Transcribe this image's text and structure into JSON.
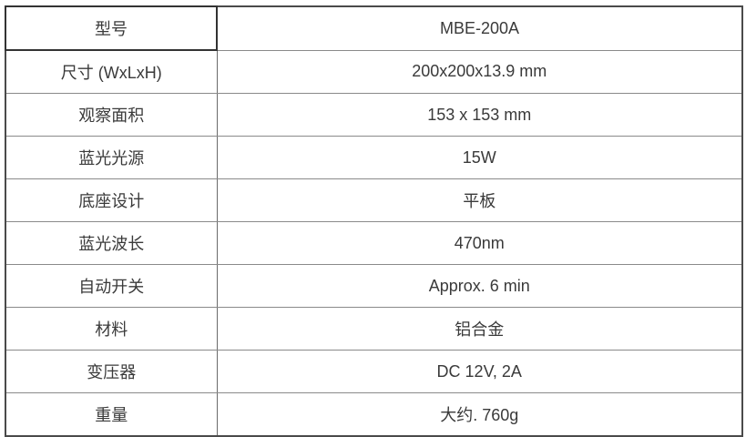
{
  "specs": {
    "rows": [
      {
        "label": "型号",
        "value": "MBE-200A"
      },
      {
        "label": "尺寸 (WxLxH)",
        "value": "200x200x13.9 mm"
      },
      {
        "label": "观察面积",
        "value": "153 x 153 mm"
      },
      {
        "label": "蓝光光源",
        "value": "15W"
      },
      {
        "label": "底座设计",
        "value": "平板"
      },
      {
        "label": "蓝光波长",
        "value": "470nm"
      },
      {
        "label": "自动开关",
        "value": "Approx. 6 min"
      },
      {
        "label": "材料",
        "value": "铝合金"
      },
      {
        "label": "变压器",
        "value": "DC 12V, 2A"
      },
      {
        "label": "重量",
        "value": "大约. 760g"
      }
    ]
  }
}
